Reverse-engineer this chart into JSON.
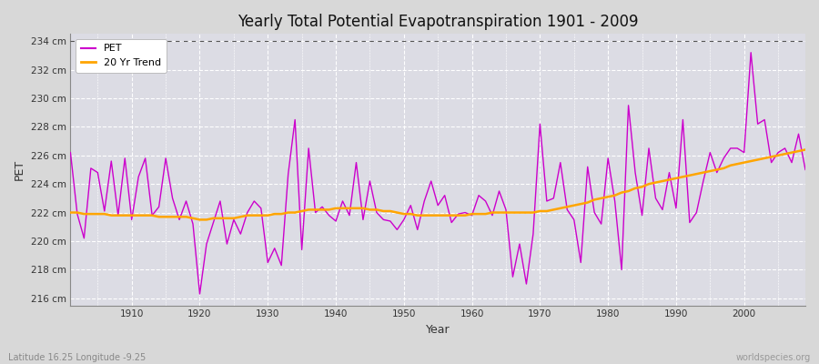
{
  "title": "Yearly Total Potential Evapotranspiration 1901 - 2009",
  "xlabel": "Year",
  "ylabel": "PET",
  "footnote_left": "Latitude 16.25 Longitude -9.25",
  "footnote_right": "worldspecies.org",
  "pet_color": "#cc00cc",
  "trend_color": "#ffa500",
  "bg_color": "#d8d8d8",
  "plot_bg_color": "#d8d8e0",
  "ylim": [
    215.5,
    234.5
  ],
  "yticks": [
    216,
    218,
    220,
    222,
    224,
    226,
    228,
    230,
    232,
    234
  ],
  "ytick_labels": [
    "216 cm",
    "218 cm",
    "220 cm",
    "222 cm",
    "224 cm",
    "226 cm",
    "228 cm",
    "230 cm",
    "232 cm",
    "234 cm"
  ],
  "xticks": [
    1910,
    1920,
    1930,
    1940,
    1950,
    1960,
    1970,
    1980,
    1990,
    2000
  ],
  "years": [
    1901,
    1902,
    1903,
    1904,
    1905,
    1906,
    1907,
    1908,
    1909,
    1910,
    1911,
    1912,
    1913,
    1914,
    1915,
    1916,
    1917,
    1918,
    1919,
    1920,
    1921,
    1922,
    1923,
    1924,
    1925,
    1926,
    1927,
    1928,
    1929,
    1930,
    1931,
    1932,
    1933,
    1934,
    1935,
    1936,
    1937,
    1938,
    1939,
    1940,
    1941,
    1942,
    1943,
    1944,
    1945,
    1946,
    1947,
    1948,
    1949,
    1950,
    1951,
    1952,
    1953,
    1954,
    1955,
    1956,
    1957,
    1958,
    1959,
    1960,
    1961,
    1962,
    1963,
    1964,
    1965,
    1966,
    1967,
    1968,
    1969,
    1970,
    1971,
    1972,
    1973,
    1974,
    1975,
    1976,
    1977,
    1978,
    1979,
    1980,
    1981,
    1982,
    1983,
    1984,
    1985,
    1986,
    1987,
    1988,
    1989,
    1990,
    1991,
    1992,
    1993,
    1994,
    1995,
    1996,
    1997,
    1998,
    1999,
    2000,
    2001,
    2002,
    2003,
    2004,
    2005,
    2006,
    2007,
    2008,
    2009
  ],
  "pet": [
    226.2,
    221.9,
    220.2,
    225.1,
    224.8,
    222.1,
    225.6,
    221.8,
    225.8,
    221.5,
    224.5,
    225.8,
    221.8,
    222.4,
    225.8,
    223.0,
    221.5,
    222.8,
    221.2,
    216.3,
    219.8,
    221.3,
    222.8,
    219.8,
    221.5,
    220.5,
    222.0,
    222.8,
    222.3,
    218.5,
    219.5,
    218.3,
    224.7,
    228.5,
    219.4,
    226.5,
    222.0,
    222.4,
    221.8,
    221.4,
    222.8,
    221.8,
    225.5,
    221.5,
    224.2,
    222.0,
    221.5,
    221.4,
    220.8,
    221.5,
    222.5,
    220.8,
    222.8,
    224.2,
    222.5,
    223.2,
    221.3,
    221.9,
    222.0,
    221.8,
    223.2,
    222.8,
    221.8,
    223.5,
    222.2,
    217.5,
    219.8,
    217.0,
    220.5,
    228.2,
    222.8,
    223.0,
    225.5,
    222.2,
    221.5,
    218.5,
    225.2,
    222.0,
    221.2,
    225.8,
    222.8,
    218.0,
    229.5,
    224.8,
    221.8,
    226.5,
    223.0,
    222.2,
    224.8,
    222.3,
    228.5,
    221.3,
    222.0,
    224.2,
    226.2,
    224.8,
    225.8,
    226.5,
    226.5,
    226.2,
    233.2,
    228.2,
    228.5,
    225.5,
    226.2,
    226.5,
    225.5,
    227.5,
    225.0
  ],
  "trend": [
    222.0,
    222.0,
    221.9,
    221.9,
    221.9,
    221.9,
    221.8,
    221.8,
    221.8,
    221.8,
    221.8,
    221.8,
    221.8,
    221.7,
    221.7,
    221.7,
    221.7,
    221.7,
    221.6,
    221.5,
    221.5,
    221.6,
    221.6,
    221.6,
    221.6,
    221.7,
    221.8,
    221.8,
    221.8,
    221.8,
    221.9,
    221.9,
    222.0,
    222.0,
    222.1,
    222.2,
    222.2,
    222.2,
    222.2,
    222.3,
    222.3,
    222.3,
    222.3,
    222.3,
    222.2,
    222.2,
    222.1,
    222.1,
    222.0,
    221.9,
    221.9,
    221.8,
    221.8,
    221.8,
    221.8,
    221.8,
    221.8,
    221.8,
    221.8,
    221.9,
    221.9,
    221.9,
    222.0,
    222.0,
    222.0,
    222.0,
    222.0,
    222.0,
    222.0,
    222.1,
    222.1,
    222.2,
    222.3,
    222.4,
    222.5,
    222.6,
    222.7,
    222.9,
    223.0,
    223.1,
    223.2,
    223.4,
    223.5,
    223.7,
    223.8,
    224.0,
    224.1,
    224.2,
    224.3,
    224.4,
    224.5,
    224.6,
    224.7,
    224.8,
    224.9,
    225.0,
    225.1,
    225.3,
    225.4,
    225.5,
    225.6,
    225.7,
    225.8,
    225.9,
    226.0,
    226.1,
    226.2,
    226.3,
    226.4
  ]
}
